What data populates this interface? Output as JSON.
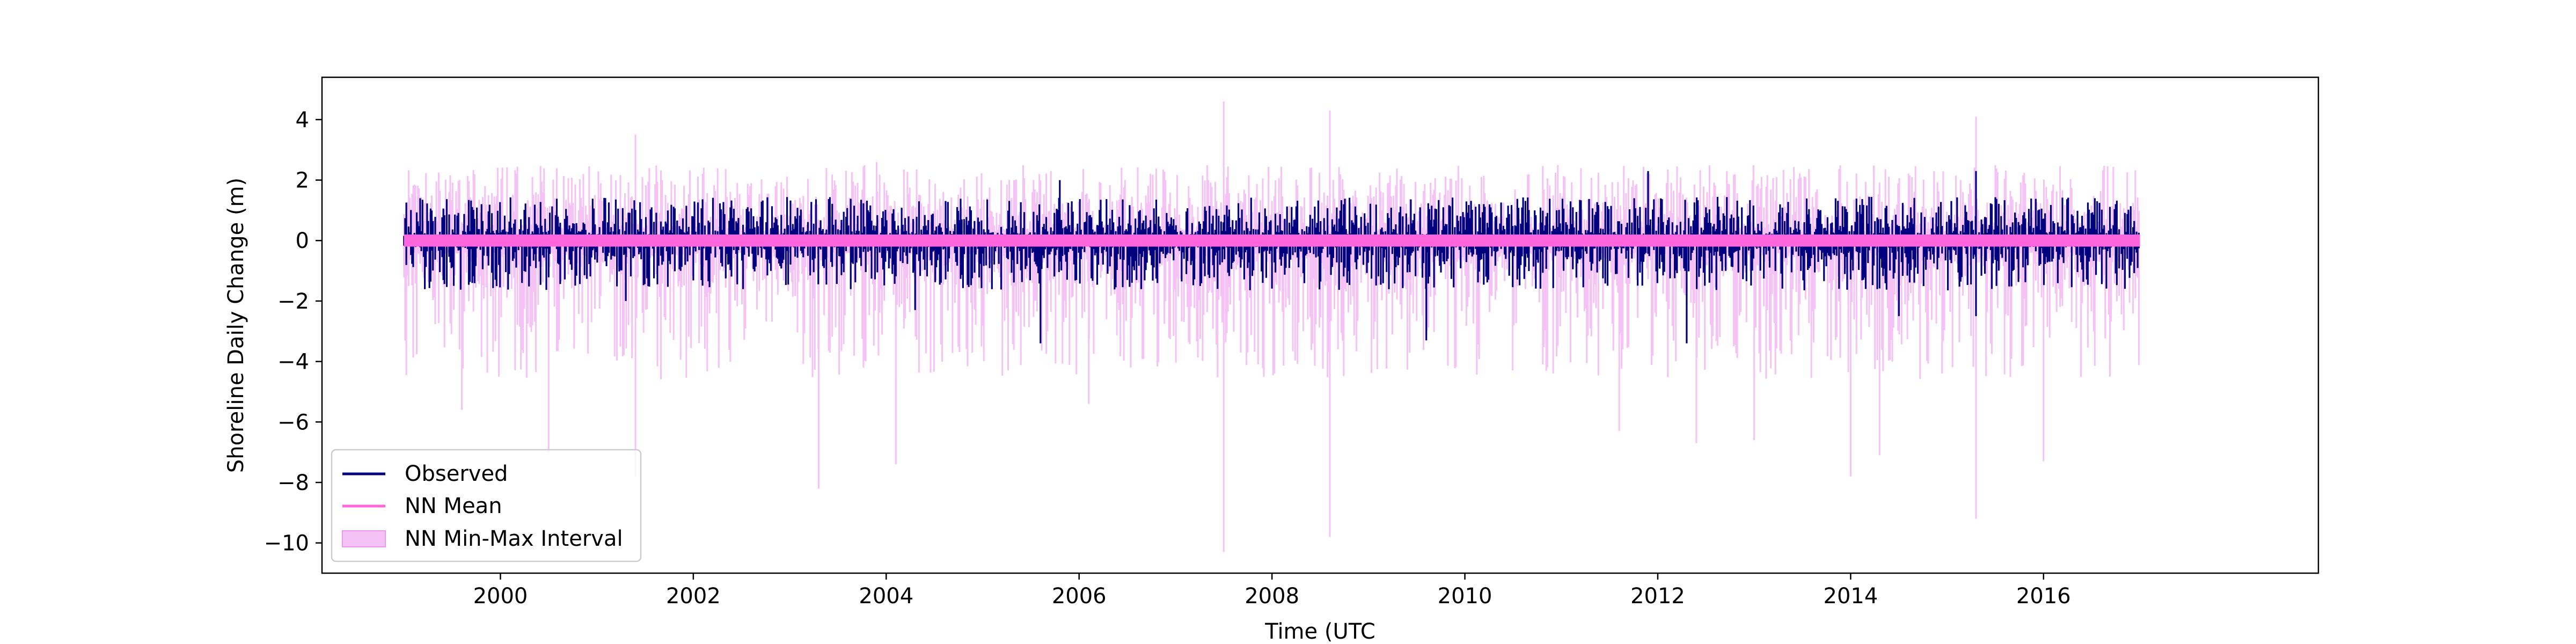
{
  "chart_data": {
    "type": "area",
    "title": "",
    "xlabel": "Time (UTC",
    "ylabel": "Shoreline Daily Change (m)",
    "xlim": [
      1998.15,
      2018.85
    ],
    "ylim": [
      -11.0,
      5.4
    ],
    "x_tick_labels": [
      "2000",
      "2002",
      "2004",
      "2006",
      "2008",
      "2010",
      "2012",
      "2014",
      "2016"
    ],
    "y_tick_labels": [
      "4",
      "2",
      "0",
      "−2",
      "−4",
      "−6",
      "−8",
      "−10"
    ],
    "y_tick_values": [
      4,
      2,
      0,
      -2,
      -4,
      -6,
      -8,
      -10
    ],
    "x_tick_values": [
      2000,
      2002,
      2004,
      2006,
      2008,
      2010,
      2012,
      2014,
      2016
    ],
    "x_range_data": [
      1999.0,
      2017.0
    ],
    "grid": false,
    "legend_position": "lower-left",
    "series": [
      {
        "name": "Observed",
        "color": "#00007f",
        "approx_range": [
          -3.4,
          2.3
        ],
        "highlights": [
          [
            2001.3,
            -2.0
          ],
          [
            2004.3,
            -2.3
          ],
          [
            2005.6,
            -3.4
          ],
          [
            2005.8,
            2.0
          ],
          [
            2009.6,
            -3.3
          ],
          [
            2011.9,
            2.3
          ],
          [
            2012.3,
            -3.4
          ],
          [
            2014.5,
            -2.5
          ],
          [
            2015.3,
            2.3
          ],
          [
            2015.3,
            -2.5
          ]
        ]
      },
      {
        "name": "NN Mean",
        "color": "#ff66dd",
        "approx_range": [
          -0.2,
          0.2
        ]
      },
      {
        "name": "NN Min-Max Interval",
        "color": "#f5c2f5",
        "approx_range": [
          -10.3,
          4.6
        ],
        "spikes": [
          [
            1999.6,
            -5.6
          ],
          [
            2000.5,
            -7.0
          ],
          [
            2001.4,
            -7.8
          ],
          [
            2001.4,
            3.5
          ],
          [
            2003.3,
            -8.2
          ],
          [
            2003.9,
            2.6
          ],
          [
            2004.1,
            -7.4
          ],
          [
            2006.1,
            -5.4
          ],
          [
            2007.5,
            -10.3
          ],
          [
            2007.5,
            4.6
          ],
          [
            2008.6,
            -9.8
          ],
          [
            2008.6,
            4.3
          ],
          [
            2011.6,
            -6.3
          ],
          [
            2012.4,
            -6.7
          ],
          [
            2013.0,
            -6.6
          ],
          [
            2014.0,
            -7.8
          ],
          [
            2014.3,
            -7.1
          ],
          [
            2015.3,
            -9.2
          ],
          [
            2015.3,
            4.1
          ],
          [
            2016.0,
            -7.3
          ]
        ]
      }
    ]
  }
}
